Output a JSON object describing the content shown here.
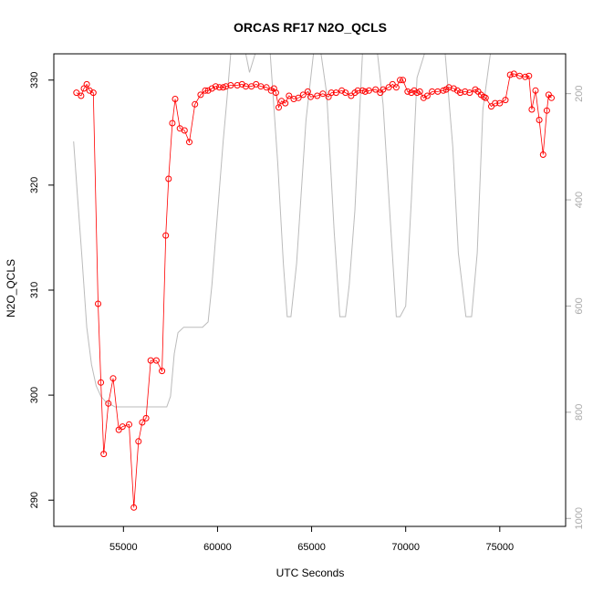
{
  "chart_data": {
    "type": "line",
    "title": "ORCAS RF17 N2O_QCLS",
    "xlabel": "UTC Seconds",
    "ylabel": "N2O_QCLS",
    "y2label": "",
    "xlim": [
      51300,
      78500
    ],
    "ylim": [
      287.5,
      332.5
    ],
    "y2lim": [
      1015,
      125
    ],
    "x_ticks": [
      55000,
      60000,
      65000,
      70000,
      75000
    ],
    "x_tick_labels": [
      "55000",
      "60000",
      "65000",
      "70000",
      "75000"
    ],
    "y_ticks": [
      290,
      300,
      310,
      320,
      330
    ],
    "y_tick_labels": [
      "290",
      "300",
      "310",
      "320",
      "330"
    ],
    "y2_ticks": [
      200,
      400,
      600,
      800,
      1000
    ],
    "y2_tick_labels": [
      "200",
      "400",
      "600",
      "800",
      "1000"
    ],
    "grid": false,
    "colors": {
      "series": "#ff0000",
      "secondary": "#bbbbbb",
      "axis": "#000000",
      "axis_right": "#aaaaaa"
    },
    "series": [
      {
        "axis": "left",
        "marker": "open-circle",
        "x": [
          52500,
          52750,
          52900,
          53050,
          53200,
          53400,
          53650,
          53800,
          53950,
          54200,
          54450,
          54750,
          54950,
          55300,
          55550,
          55800,
          56000,
          56200,
          56450,
          56750,
          57050,
          57250,
          57400,
          57600,
          57750,
          58000,
          58250,
          58500,
          58800,
          59100,
          59350,
          59500,
          59700,
          59900,
          60100,
          60300,
          60450,
          60700,
          61050,
          61300,
          61500,
          61800,
          62050,
          62300,
          62600,
          62850,
          63000,
          63100,
          63250,
          63400,
          63600,
          63800,
          64050,
          64300,
          64550,
          64800,
          64950,
          65300,
          65600,
          65900,
          66050,
          66300,
          66600,
          66800,
          67100,
          67300,
          67450,
          67700,
          67850,
          68050,
          68400,
          68650,
          68800,
          69100,
          69300,
          69500,
          69700,
          69850,
          70100,
          70300,
          70450,
          70600,
          70750,
          70950,
          71150,
          71400,
          71700,
          72000,
          72150,
          72300,
          72550,
          72750,
          72900,
          73150,
          73400,
          73700,
          73850,
          74000,
          74150,
          74250,
          74550,
          74750,
          75000,
          75300,
          75550,
          75750,
          76050,
          76350,
          76550,
          76700,
          76900,
          77100,
          77300,
          77500,
          77600,
          77750
        ],
        "y": [
          328.8,
          328.5,
          329.2,
          329.6,
          329.0,
          328.8,
          308.7,
          301.2,
          294.4,
          299.2,
          301.6,
          296.7,
          297.0,
          297.2,
          289.3,
          295.6,
          297.4,
          297.8,
          303.3,
          303.3,
          302.3,
          315.2,
          320.6,
          325.9,
          328.2,
          325.4,
          325.2,
          324.1,
          327.7,
          328.6,
          329.0,
          329.0,
          329.2,
          329.4,
          329.3,
          329.3,
          329.4,
          329.5,
          329.5,
          329.6,
          329.4,
          329.4,
          329.6,
          329.4,
          329.3,
          329.0,
          329.2,
          328.8,
          327.4,
          328.0,
          327.8,
          328.5,
          328.2,
          328.3,
          328.6,
          328.9,
          328.4,
          328.5,
          328.7,
          328.4,
          328.8,
          328.8,
          329.0,
          328.8,
          328.5,
          328.8,
          329.0,
          329.0,
          328.9,
          329.0,
          329.1,
          328.8,
          329.1,
          329.3,
          329.6,
          329.3,
          330.0,
          330.0,
          328.9,
          328.8,
          329.0,
          328.8,
          328.9,
          328.3,
          328.5,
          328.9,
          328.9,
          329.0,
          329.1,
          329.3,
          329.2,
          329.0,
          328.8,
          328.9,
          328.8,
          329.1,
          328.9,
          328.6,
          328.4,
          328.3,
          327.5,
          327.8,
          327.8,
          328.1,
          330.5,
          330.6,
          330.4,
          330.3,
          330.4,
          327.2,
          329.0,
          326.2,
          322.9,
          327.1,
          328.6,
          328.3
        ]
      },
      {
        "axis": "right",
        "marker": "none",
        "x": [
          52350,
          52550,
          52800,
          53050,
          53300,
          53550,
          53800,
          54050,
          54300,
          54550,
          55000,
          55500,
          56000,
          56500,
          57000,
          57300,
          57500,
          57700,
          57900,
          58200,
          58700,
          59200,
          59500,
          59700,
          59900,
          60100,
          60300,
          60500,
          60700,
          60900,
          61200,
          61500,
          61700,
          62000,
          62400,
          62800,
          63200,
          63500,
          63700,
          63900,
          64200,
          64700,
          65100,
          65300,
          65500,
          65800,
          66200,
          66500,
          66800,
          67000,
          67300,
          67700,
          68200,
          68500,
          68800,
          69200,
          69500,
          69700,
          70000,
          70300,
          70600,
          71000,
          71600,
          72100,
          72500,
          72800,
          73200,
          73500,
          73800,
          74100,
          74500,
          74900,
          75200,
          75500,
          75800,
          76100,
          76400,
          76600,
          76800,
          77000,
          77300,
          77500,
          77600,
          77750
        ],
        "y": [
          290,
          390,
          510,
          640,
          710,
          750,
          770,
          780,
          785,
          790,
          790,
          790,
          790,
          790,
          790,
          790,
          770,
          690,
          650,
          640,
          640,
          640,
          630,
          560,
          470,
          380,
          290,
          210,
          125,
          125,
          125,
          125,
          160,
          125,
          125,
          125,
          330,
          520,
          620,
          620,
          520,
          250,
          125,
          125,
          125,
          200,
          460,
          620,
          620,
          560,
          420,
          125,
          125,
          125,
          220,
          450,
          620,
          620,
          600,
          400,
          170,
          125,
          125,
          125,
          300,
          500,
          620,
          620,
          500,
          230,
          125,
          125,
          125,
          125,
          125,
          125,
          125,
          125,
          125,
          125,
          125,
          125,
          125,
          125
        ]
      }
    ]
  }
}
